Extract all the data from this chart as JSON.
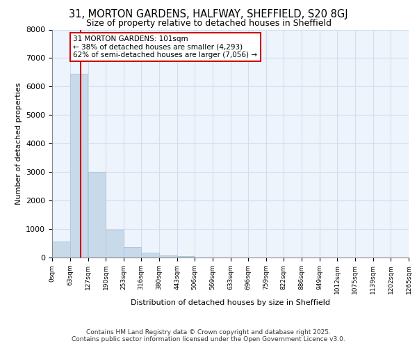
{
  "title_line1": "31, MORTON GARDENS, HALFWAY, SHEFFIELD, S20 8GJ",
  "title_line2": "Size of property relative to detached houses in Sheffield",
  "xlabel": "Distribution of detached houses by size in Sheffield",
  "ylabel": "Number of detached properties",
  "bar_color": "#c8daea",
  "bar_edge_color": "#aec8dc",
  "grid_color": "#d0dff0",
  "background_color": "#eef4fc",
  "fig_background": "#ffffff",
  "red_line_x": 101,
  "bin_width": 63,
  "bins": [
    0,
    63,
    127,
    190,
    253,
    316,
    380,
    443,
    506,
    569,
    633,
    696,
    759,
    822,
    886,
    949,
    1012,
    1075,
    1139,
    1202,
    1265
  ],
  "bin_labels": [
    "0sqm",
    "63sqm",
    "127sqm",
    "190sqm",
    "253sqm",
    "316sqm",
    "380sqm",
    "443sqm",
    "506sqm",
    "569sqm",
    "633sqm",
    "696sqm",
    "759sqm",
    "822sqm",
    "886sqm",
    "949sqm",
    "1012sqm",
    "1075sqm",
    "1139sqm",
    "1202sqm",
    "1265sqm"
  ],
  "values": [
    570,
    6450,
    3000,
    970,
    370,
    160,
    80,
    60,
    0,
    0,
    0,
    0,
    0,
    0,
    0,
    0,
    0,
    0,
    0,
    0
  ],
  "annotation_text": "31 MORTON GARDENS: 101sqm\n← 38% of detached houses are smaller (4,293)\n62% of semi-detached houses are larger (7,056) →",
  "annotation_box_facecolor": "#ffffff",
  "annotation_box_edgecolor": "#cc0000",
  "footer_line1": "Contains HM Land Registry data © Crown copyright and database right 2025.",
  "footer_line2": "Contains public sector information licensed under the Open Government Licence v3.0.",
  "ylim": [
    0,
    8000
  ],
  "yticks": [
    0,
    1000,
    2000,
    3000,
    4000,
    5000,
    6000,
    7000,
    8000
  ]
}
